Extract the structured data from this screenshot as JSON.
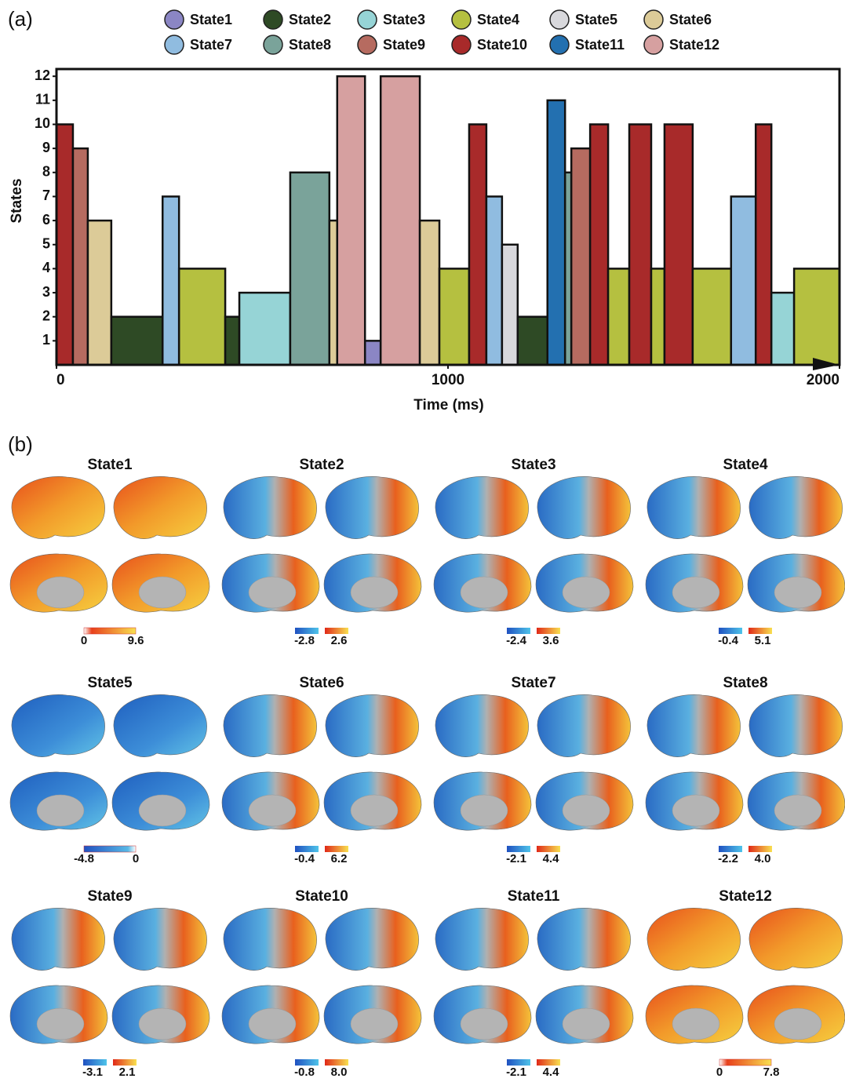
{
  "panel_labels": [
    "(a)",
    "(b)"
  ],
  "chart_data": {
    "type": "state-timeline",
    "x_label": "Time (ms)",
    "y_label": "States",
    "xlim": [
      0,
      2000
    ],
    "xticks": [
      0,
      1000,
      2000
    ],
    "ylim": [
      0,
      12.3
    ],
    "yticks": [
      1,
      2,
      3,
      4,
      5,
      6,
      7,
      8,
      9,
      10,
      11,
      12
    ],
    "series": [
      {
        "name": "State1",
        "color": "#8b86c4"
      },
      {
        "name": "State2",
        "color": "#2e4a25"
      },
      {
        "name": "State3",
        "color": "#96d4d6"
      },
      {
        "name": "State4",
        "color": "#b5c040"
      },
      {
        "name": "State5",
        "color": "#d8d8dc"
      },
      {
        "name": "State6",
        "color": "#dccb98"
      },
      {
        "name": "State7",
        "color": "#90bce0"
      },
      {
        "name": "State8",
        "color": "#7aa39a"
      },
      {
        "name": "State9",
        "color": "#b66b60"
      },
      {
        "name": "State10",
        "color": "#a82a2a"
      },
      {
        "name": "State11",
        "color": "#2370b0"
      },
      {
        "name": "State12",
        "color": "#d6a0a0"
      }
    ],
    "segments": [
      {
        "start": 0,
        "end": 42,
        "value": 10
      },
      {
        "start": 42,
        "end": 80,
        "value": 9
      },
      {
        "start": 80,
        "end": 140,
        "value": 6
      },
      {
        "start": 140,
        "end": 271,
        "value": 2
      },
      {
        "start": 271,
        "end": 313,
        "value": 7
      },
      {
        "start": 313,
        "end": 431,
        "value": 4
      },
      {
        "start": 431,
        "end": 467,
        "value": 2
      },
      {
        "start": 467,
        "end": 597,
        "value": 3
      },
      {
        "start": 597,
        "end": 697,
        "value": 8
      },
      {
        "start": 697,
        "end": 717,
        "value": 6
      },
      {
        "start": 717,
        "end": 788,
        "value": 12
      },
      {
        "start": 788,
        "end": 828,
        "value": 1
      },
      {
        "start": 828,
        "end": 928,
        "value": 12
      },
      {
        "start": 928,
        "end": 978,
        "value": 6
      },
      {
        "start": 978,
        "end": 1054,
        "value": 4
      },
      {
        "start": 1054,
        "end": 1098,
        "value": 10
      },
      {
        "start": 1098,
        "end": 1138,
        "value": 7
      },
      {
        "start": 1138,
        "end": 1178,
        "value": 5
      },
      {
        "start": 1178,
        "end": 1254,
        "value": 2
      },
      {
        "start": 1254,
        "end": 1299,
        "value": 11
      },
      {
        "start": 1299,
        "end": 1315,
        "value": 8
      },
      {
        "start": 1315,
        "end": 1363,
        "value": 9
      },
      {
        "start": 1363,
        "end": 1409,
        "value": 10
      },
      {
        "start": 1409,
        "end": 1463,
        "value": 4
      },
      {
        "start": 1463,
        "end": 1519,
        "value": 10
      },
      {
        "start": 1519,
        "end": 1553,
        "value": 4
      },
      {
        "start": 1553,
        "end": 1625,
        "value": 10
      },
      {
        "start": 1625,
        "end": 1723,
        "value": 4
      },
      {
        "start": 1723,
        "end": 1786,
        "value": 7
      },
      {
        "start": 1786,
        "end": 1826,
        "value": 10
      },
      {
        "start": 1826,
        "end": 1884,
        "value": 3
      },
      {
        "start": 1884,
        "end": 2000,
        "value": 4
      }
    ]
  },
  "brain_maps": [
    {
      "title": "State1",
      "min": 0,
      "max": 9.6
    },
    {
      "title": "State2",
      "min": -2.8,
      "max": 2.6
    },
    {
      "title": "State3",
      "min": -2.4,
      "max": 3.6
    },
    {
      "title": "State4",
      "min": -0.4,
      "max": 5.1
    },
    {
      "title": "State5",
      "min": -4.8,
      "max": 0
    },
    {
      "title": "State6",
      "min": -0.4,
      "max": 6.2
    },
    {
      "title": "State7",
      "min": -2.1,
      "max": 4.4
    },
    {
      "title": "State8",
      "min": -2.2,
      "max": {
        "value": 4,
        "label": "4.0"
      }
    },
    {
      "title": "State9",
      "min": -3.1,
      "max": 2.1
    },
    {
      "title": "State10",
      "min": -0.8,
      "max": {
        "value": 8,
        "label": "8.0"
      }
    },
    {
      "title": "State11",
      "min": -2.1,
      "max": 4.4
    },
    {
      "title": "State12",
      "min": 0,
      "max": 7.8
    }
  ]
}
